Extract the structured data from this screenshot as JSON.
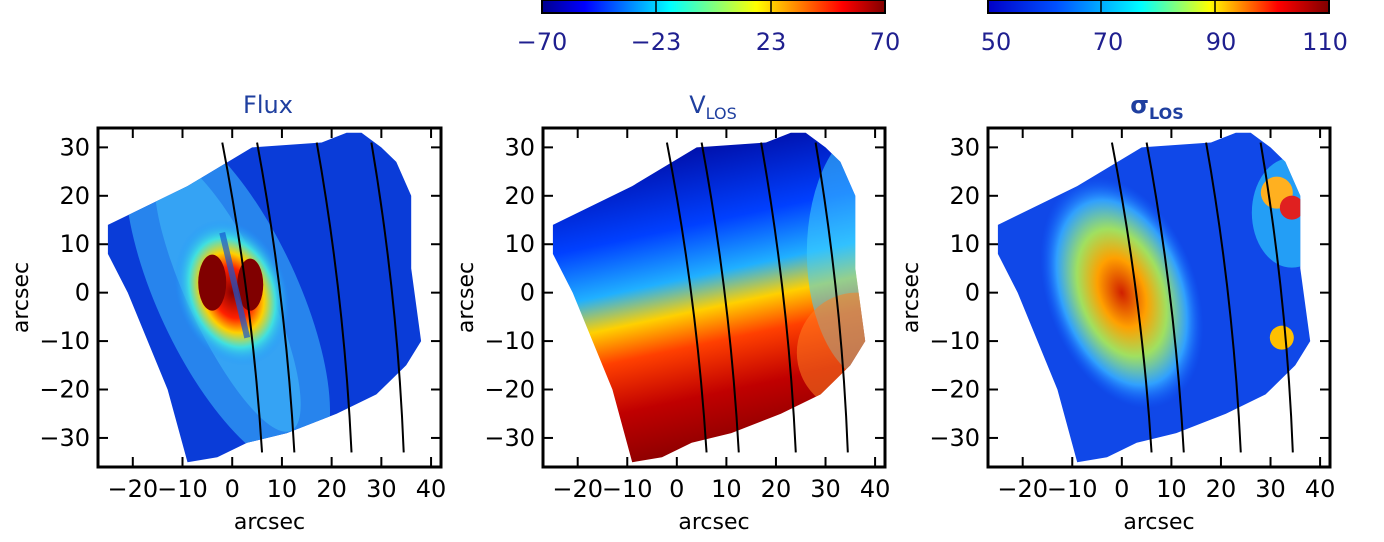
{
  "colorbars": [
    {
      "ticks": [
        "−70",
        "−23",
        "23",
        "70"
      ],
      "range": [
        -70,
        70
      ],
      "applies_to": "V_LOS"
    },
    {
      "ticks": [
        "50",
        "70",
        "90",
        "110"
      ],
      "range": [
        50,
        110
      ],
      "applies_to": "sigma_LOS"
    }
  ],
  "chart_data": [
    {
      "type": "heatmap",
      "title": "Flux",
      "xlabel": "arcsec",
      "ylabel": "arcsec",
      "xlim": [
        -27,
        42
      ],
      "ylim": [
        -36,
        34
      ],
      "xticks": [
        "−20",
        "−10",
        "0",
        "10",
        "20",
        "30",
        "40"
      ],
      "yticks": [
        "30",
        "20",
        "10",
        "0",
        "−10",
        "−20",
        "−30"
      ],
      "colormap": "jet",
      "description_values": {
        "center_peak": [
          0,
          0
        ],
        "dust_lane": true
      }
    },
    {
      "type": "heatmap",
      "title": "V",
      "title_sub": "LOS",
      "xlabel": "arcsec",
      "ylabel": "arcsec",
      "xlim": [
        -27,
        42
      ],
      "ylim": [
        -36,
        34
      ],
      "xticks": [
        "−20",
        "−10",
        "0",
        "10",
        "20",
        "30",
        "40"
      ],
      "yticks": [
        "30",
        "20",
        "10",
        "0",
        "−10",
        "−20",
        "−30"
      ],
      "colormap": "jet",
      "value_range": [
        -70,
        70
      ]
    },
    {
      "type": "heatmap",
      "title": "σ",
      "title_sub": "LOS",
      "xlabel": "arcsec",
      "ylabel": "arcsec",
      "xlim": [
        -27,
        42
      ],
      "ylim": [
        -36,
        34
      ],
      "xticks": [
        "−20",
        "−10",
        "0",
        "10",
        "20",
        "30",
        "40"
      ],
      "yticks": [
        "30",
        "20",
        "10",
        "0",
        "−10",
        "−20",
        "−30"
      ],
      "colormap": "jet",
      "value_range": [
        50,
        110
      ]
    }
  ],
  "contours_x_at_top": [
    -2,
    5,
    17,
    28
  ],
  "field_polygon": [
    [
      -25,
      14
    ],
    [
      -9,
      22
    ],
    [
      4,
      30
    ],
    [
      18,
      31
    ],
    [
      23,
      33
    ],
    [
      26,
      33
    ],
    [
      30,
      30
    ],
    [
      33,
      27
    ],
    [
      36,
      20
    ],
    [
      36,
      5
    ],
    [
      38,
      -10
    ],
    [
      35,
      -15
    ],
    [
      29,
      -21
    ],
    [
      21,
      -25
    ],
    [
      11,
      -29
    ],
    [
      3,
      -31
    ],
    [
      -3,
      -34
    ],
    [
      -9,
      -35
    ],
    [
      -13,
      -20
    ],
    [
      -21,
      0
    ],
    [
      -25,
      8
    ]
  ],
  "colors": {
    "axis": "#000000",
    "colorbar_text": "#1f1f8f",
    "title": "#1f3f9f"
  }
}
